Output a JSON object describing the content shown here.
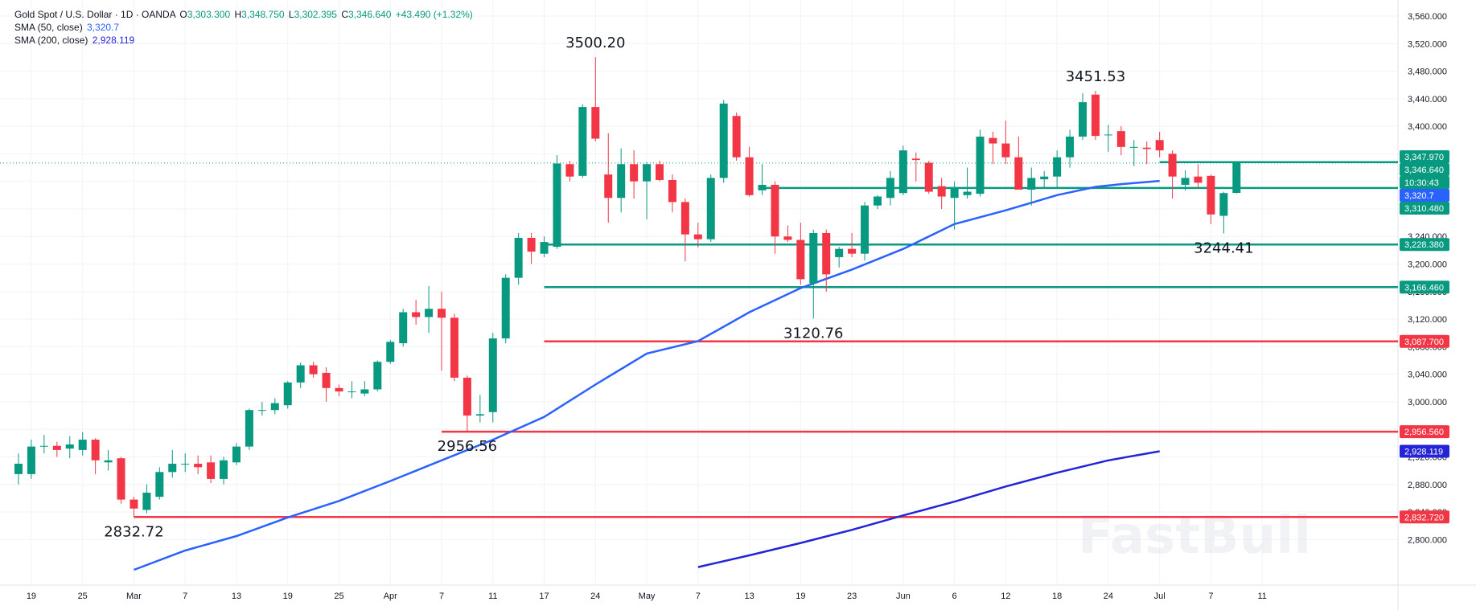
{
  "legend": {
    "title": "Gold Spot / U.S. Dollar · 1D · OANDA",
    "o_label": "O",
    "o": "3,303.300",
    "h_label": "H",
    "h": "3,348.750",
    "l_label": "L",
    "l": "3,302.395",
    "c_label": "C",
    "c": "3,346.640",
    "change": "+43.490 (+1.32%)",
    "sma50_label": "SMA (50, close)",
    "sma50": "3,320.7",
    "sma200_label": "SMA (200, close)",
    "sma200": "2,928.119"
  },
  "watermark": "FastBull",
  "colors": {
    "up": "#089981",
    "down": "#f23645",
    "sma50": "#2962ff",
    "sma200": "#2424d6",
    "grid": "#f0f3fa",
    "support": "#089981",
    "resistance": "#f23645"
  },
  "chart_data": {
    "type": "candlestick",
    "symbol": "Gold Spot / U.S. Dollar",
    "timeframe": "1D",
    "y_axis": {
      "ticks": [
        "3,560.000",
        "3,520.000",
        "3,480.000",
        "3,440.000",
        "3,400.000",
        "3,360.000",
        "3,320.000",
        "3,280.000",
        "3,240.000",
        "3,200.000",
        "3,160.000",
        "3,120.000",
        "3,080.000",
        "3,040.000",
        "3,000.000",
        "2,960.000",
        "2,920.000",
        "2,880.000",
        "2,840.000",
        "2,800.000"
      ],
      "tick_values": [
        3560,
        3520,
        3480,
        3440,
        3400,
        3360,
        3320,
        3280,
        3240,
        3200,
        3160,
        3120,
        3080,
        3040,
        3000,
        2960,
        2920,
        2880,
        2840,
        2800
      ],
      "range": [
        2775,
        3580
      ]
    },
    "x_axis": {
      "ticks": [
        "19",
        "25",
        "Mar",
        "7",
        "13",
        "19",
        "25",
        "Apr",
        "7",
        "11",
        "17",
        "24",
        "May",
        "7",
        "13",
        "19",
        "23",
        "Jun",
        "6",
        "12",
        "18",
        "24",
        "Jul",
        "7",
        "11"
      ],
      "tick_index": [
        1,
        5,
        9,
        13,
        17,
        21,
        25,
        29,
        33,
        37,
        41,
        45,
        49,
        53,
        57,
        61,
        65,
        69,
        73,
        77,
        81,
        85,
        89,
        93,
        97
      ]
    },
    "candles": [
      {
        "o": 2895,
        "h": 2925,
        "l": 2880,
        "c": 2910
      },
      {
        "o": 2895,
        "h": 2945,
        "l": 2888,
        "c": 2935
      },
      {
        "o": 2935,
        "h": 2952,
        "l": 2925,
        "c": 2936
      },
      {
        "o": 2936,
        "h": 2942,
        "l": 2920,
        "c": 2930
      },
      {
        "o": 2932,
        "h": 2950,
        "l": 2918,
        "c": 2938
      },
      {
        "o": 2930,
        "h": 2956,
        "l": 2922,
        "c": 2945
      },
      {
        "o": 2945,
        "h": 2947,
        "l": 2895,
        "c": 2915
      },
      {
        "o": 2912,
        "h": 2930,
        "l": 2900,
        "c": 2915
      },
      {
        "o": 2918,
        "h": 2920,
        "l": 2852,
        "c": 2858
      },
      {
        "o": 2858,
        "h": 2862,
        "l": 2832.72,
        "c": 2845
      },
      {
        "o": 2843,
        "h": 2880,
        "l": 2838,
        "c": 2868
      },
      {
        "o": 2862,
        "h": 2905,
        "l": 2858,
        "c": 2898
      },
      {
        "o": 2898,
        "h": 2930,
        "l": 2890,
        "c": 2910
      },
      {
        "o": 2910,
        "h": 2925,
        "l": 2898,
        "c": 2910
      },
      {
        "o": 2910,
        "h": 2922,
        "l": 2895,
        "c": 2905
      },
      {
        "o": 2912,
        "h": 2922,
        "l": 2882,
        "c": 2888
      },
      {
        "o": 2888,
        "h": 2920,
        "l": 2880,
        "c": 2915
      },
      {
        "o": 2912,
        "h": 2940,
        "l": 2908,
        "c": 2935
      },
      {
        "o": 2935,
        "h": 2990,
        "l": 2930,
        "c": 2988
      },
      {
        "o": 2988,
        "h": 3000,
        "l": 2980,
        "c": 2988
      },
      {
        "o": 2988,
        "h": 3005,
        "l": 2982,
        "c": 2998
      },
      {
        "o": 2995,
        "h": 3030,
        "l": 2990,
        "c": 3028
      },
      {
        "o": 3028,
        "h": 3057,
        "l": 3020,
        "c": 3053
      },
      {
        "o": 3053,
        "h": 3058,
        "l": 3035,
        "c": 3040
      },
      {
        "o": 3042,
        "h": 3050,
        "l": 3000,
        "c": 3020
      },
      {
        "o": 3020,
        "h": 3025,
        "l": 3008,
        "c": 3015
      },
      {
        "o": 3015,
        "h": 3030,
        "l": 3005,
        "c": 3015
      },
      {
        "o": 3012,
        "h": 3030,
        "l": 3008,
        "c": 3018
      },
      {
        "o": 3018,
        "h": 3060,
        "l": 3015,
        "c": 3058
      },
      {
        "o": 3058,
        "h": 3090,
        "l": 3055,
        "c": 3087
      },
      {
        "o": 3085,
        "h": 3135,
        "l": 3080,
        "c": 3130
      },
      {
        "o": 3130,
        "h": 3148,
        "l": 3112,
        "c": 3123
      },
      {
        "o": 3123,
        "h": 3168,
        "l": 3100,
        "c": 3135
      },
      {
        "o": 3135,
        "h": 3160,
        "l": 3045,
        "c": 3122
      },
      {
        "o": 3122,
        "h": 3128,
        "l": 3030,
        "c": 3035
      },
      {
        "o": 3035,
        "h": 3038,
        "l": 2956.56,
        "c": 2980
      },
      {
        "o": 2980,
        "h": 3010,
        "l": 2970,
        "c": 2982
      },
      {
        "o": 2985,
        "h": 3100,
        "l": 2970,
        "c": 3092
      },
      {
        "o": 3092,
        "h": 3185,
        "l": 3085,
        "c": 3180
      },
      {
        "o": 3180,
        "h": 3245,
        "l": 3170,
        "c": 3238
      },
      {
        "o": 3238,
        "h": 3245,
        "l": 3200,
        "c": 3218
      },
      {
        "o": 3215,
        "h": 3240,
        "l": 3210,
        "c": 3232
      },
      {
        "o": 3225,
        "h": 3358,
        "l": 3222,
        "c": 3346
      },
      {
        "o": 3345,
        "h": 3350,
        "l": 3320,
        "c": 3327
      },
      {
        "o": 3328,
        "h": 3432,
        "l": 3325,
        "c": 3428
      },
      {
        "o": 3428,
        "h": 3500.2,
        "l": 3378,
        "c": 3382
      },
      {
        "o": 3330,
        "h": 3390,
        "l": 3260,
        "c": 3296
      },
      {
        "o": 3296,
        "h": 3368,
        "l": 3275,
        "c": 3345
      },
      {
        "o": 3345,
        "h": 3365,
        "l": 3295,
        "c": 3320
      },
      {
        "o": 3320,
        "h": 3348,
        "l": 3265,
        "c": 3345
      },
      {
        "o": 3345,
        "h": 3350,
        "l": 3320,
        "c": 3322
      },
      {
        "o": 3322,
        "h": 3330,
        "l": 3275,
        "c": 3290
      },
      {
        "o": 3290,
        "h": 3295,
        "l": 3204,
        "c": 3243
      },
      {
        "o": 3243,
        "h": 3260,
        "l": 3224,
        "c": 3236
      },
      {
        "o": 3236,
        "h": 3330,
        "l": 3232,
        "c": 3325
      },
      {
        "o": 3325,
        "h": 3438,
        "l": 3318,
        "c": 3433
      },
      {
        "o": 3415,
        "h": 3420,
        "l": 3350,
        "c": 3355
      },
      {
        "o": 3355,
        "h": 3370,
        "l": 3298,
        "c": 3300
      },
      {
        "o": 3307,
        "h": 3345,
        "l": 3300,
        "c": 3315
      },
      {
        "o": 3315,
        "h": 3320,
        "l": 3215,
        "c": 3240
      },
      {
        "o": 3240,
        "h": 3256,
        "l": 3232,
        "c": 3235
      },
      {
        "o": 3235,
        "h": 3260,
        "l": 3170,
        "c": 3178
      },
      {
        "o": 3172,
        "h": 3250,
        "l": 3120.76,
        "c": 3245
      },
      {
        "o": 3245,
        "h": 3250,
        "l": 3160,
        "c": 3185
      },
      {
        "o": 3210,
        "h": 3225,
        "l": 3195,
        "c": 3222
      },
      {
        "o": 3222,
        "h": 3245,
        "l": 3210,
        "c": 3215
      },
      {
        "o": 3215,
        "h": 3290,
        "l": 3205,
        "c": 3285
      },
      {
        "o": 3285,
        "h": 3300,
        "l": 3280,
        "c": 3298
      },
      {
        "o": 3296,
        "h": 3335,
        "l": 3285,
        "c": 3325
      },
      {
        "o": 3303,
        "h": 3372,
        "l": 3300,
        "c": 3365
      },
      {
        "o": 3353,
        "h": 3362,
        "l": 3320,
        "c": 3351
      },
      {
        "o": 3347,
        "h": 3350,
        "l": 3302,
        "c": 3305
      },
      {
        "o": 3313,
        "h": 3325,
        "l": 3280,
        "c": 3298
      },
      {
        "o": 3296,
        "h": 3320,
        "l": 3250,
        "c": 3310
      },
      {
        "o": 3300,
        "h": 3340,
        "l": 3295,
        "c": 3305
      },
      {
        "o": 3302,
        "h": 3395,
        "l": 3298,
        "c": 3385
      },
      {
        "o": 3383,
        "h": 3392,
        "l": 3345,
        "c": 3375
      },
      {
        "o": 3375,
        "h": 3408,
        "l": 3345,
        "c": 3355
      },
      {
        "o": 3355,
        "h": 3385,
        "l": 3310,
        "c": 3308
      },
      {
        "o": 3308,
        "h": 3340,
        "l": 3285,
        "c": 3325
      },
      {
        "o": 3323,
        "h": 3335,
        "l": 3310,
        "c": 3327
      },
      {
        "o": 3327,
        "h": 3365,
        "l": 3310,
        "c": 3355
      },
      {
        "o": 3355,
        "h": 3395,
        "l": 3340,
        "c": 3385
      },
      {
        "o": 3385,
        "h": 3448,
        "l": 3380,
        "c": 3435
      },
      {
        "o": 3446,
        "h": 3451.53,
        "l": 3380,
        "c": 3386
      },
      {
        "o": 3387,
        "h": 3402,
        "l": 3363,
        "c": 3388
      },
      {
        "o": 3393,
        "h": 3400,
        "l": 3358,
        "c": 3370
      },
      {
        "o": 3369,
        "h": 3380,
        "l": 3342,
        "c": 3370
      },
      {
        "o": 3369,
        "h": 3378,
        "l": 3345,
        "c": 3367
      },
      {
        "o": 3380,
        "h": 3392,
        "l": 3355,
        "c": 3365
      },
      {
        "o": 3360,
        "h": 3365,
        "l": 3295,
        "c": 3327
      },
      {
        "o": 3315,
        "h": 3336,
        "l": 3307,
        "c": 3325
      },
      {
        "o": 3327,
        "h": 3345,
        "l": 3310,
        "c": 3318
      },
      {
        "o": 3328,
        "h": 3330,
        "l": 3258,
        "c": 3272
      },
      {
        "o": 3270,
        "h": 3305,
        "l": 3244.41,
        "c": 3303
      },
      {
        "o": 3303.3,
        "h": 3348.75,
        "l": 3302.395,
        "c": 3346.64
      }
    ],
    "sma50": [
      [
        9,
        2756
      ],
      [
        13,
        2784
      ],
      [
        17,
        2805
      ],
      [
        21,
        2832
      ],
      [
        25,
        2856
      ],
      [
        29,
        2885
      ],
      [
        33,
        2915
      ],
      [
        37,
        2945
      ],
      [
        41,
        2978
      ],
      [
        45,
        3025
      ],
      [
        49,
        3070
      ],
      [
        53,
        3088
      ],
      [
        57,
        3130
      ],
      [
        61,
        3165
      ],
      [
        65,
        3192
      ],
      [
        69,
        3222
      ],
      [
        73,
        3258
      ],
      [
        77,
        3278
      ],
      [
        81,
        3300
      ],
      [
        84,
        3312
      ],
      [
        86,
        3316
      ],
      [
        89,
        3320.7
      ]
    ],
    "sma200": [
      [
        53,
        2760
      ],
      [
        57,
        2777
      ],
      [
        61,
        2795
      ],
      [
        65,
        2814
      ],
      [
        69,
        2835
      ],
      [
        73,
        2855
      ],
      [
        77,
        2877
      ],
      [
        81,
        2897
      ],
      [
        85,
        2915
      ],
      [
        89,
        2928.119
      ]
    ],
    "horizontal_levels": [
      {
        "price": 3347.97,
        "label": "3,347.970",
        "kind": "support",
        "from": 89
      },
      {
        "price": 3310.48,
        "label": "3,310.480",
        "kind": "support",
        "from": 58
      },
      {
        "price": 3228.38,
        "label": "3,228.380",
        "kind": "support",
        "from": 41
      },
      {
        "price": 3166.46,
        "label": "3,166.460",
        "kind": "support",
        "from": 41
      },
      {
        "price": 3087.7,
        "label": "3,087.700",
        "kind": "resistance",
        "from": 41
      },
      {
        "price": 2956.56,
        "label": "2,956.560",
        "kind": "resistance",
        "from": 33
      },
      {
        "price": 2832.72,
        "label": "2,832.720",
        "kind": "resistance",
        "from": 9
      }
    ],
    "price_tags": [
      {
        "price": 3347.97,
        "text": "3,347.970",
        "color": "#089981",
        "slot": 0
      },
      {
        "price": 3346.64,
        "text": "3,346.640",
        "color": "#089981",
        "slot": 1
      },
      {
        "price": 3346.64,
        "text": "10:30:43",
        "color": "#089981",
        "slot": 2
      },
      {
        "price": 3320.7,
        "text": "3,320.7",
        "color": "#2962ff",
        "slot": 3
      },
      {
        "price": 3310.48,
        "text": "3,310.480",
        "color": "#089981",
        "slot": 4
      },
      {
        "price": 3228.38,
        "text": "3,228.380",
        "color": "#089981"
      },
      {
        "price": 3166.46,
        "text": "3,166.460",
        "color": "#089981"
      },
      {
        "price": 3087.7,
        "text": "3,087.700",
        "color": "#f23645"
      },
      {
        "price": 2956.56,
        "text": "2,956.560",
        "color": "#f23645"
      },
      {
        "price": 2928.119,
        "text": "2,928.119",
        "color": "#2424d6"
      },
      {
        "price": 2832.72,
        "text": "2,832.720",
        "color": "#f23645"
      }
    ],
    "annotations": [
      {
        "text": "3500.20",
        "index": 45,
        "price": 3500.2,
        "pos": "above"
      },
      {
        "text": "3451.53",
        "index": 84,
        "price": 3451.53,
        "pos": "above"
      },
      {
        "text": "3120.76",
        "index": 62,
        "price": 3120.76,
        "pos": "below"
      },
      {
        "text": "3244.41",
        "index": 94,
        "price": 3244.41,
        "pos": "below"
      },
      {
        "text": "2956.56",
        "index": 35,
        "price": 2956.56,
        "pos": "below"
      },
      {
        "text": "2832.72",
        "index": 9,
        "price": 2832.72,
        "pos": "below"
      }
    ],
    "last_price": 3346.64
  }
}
